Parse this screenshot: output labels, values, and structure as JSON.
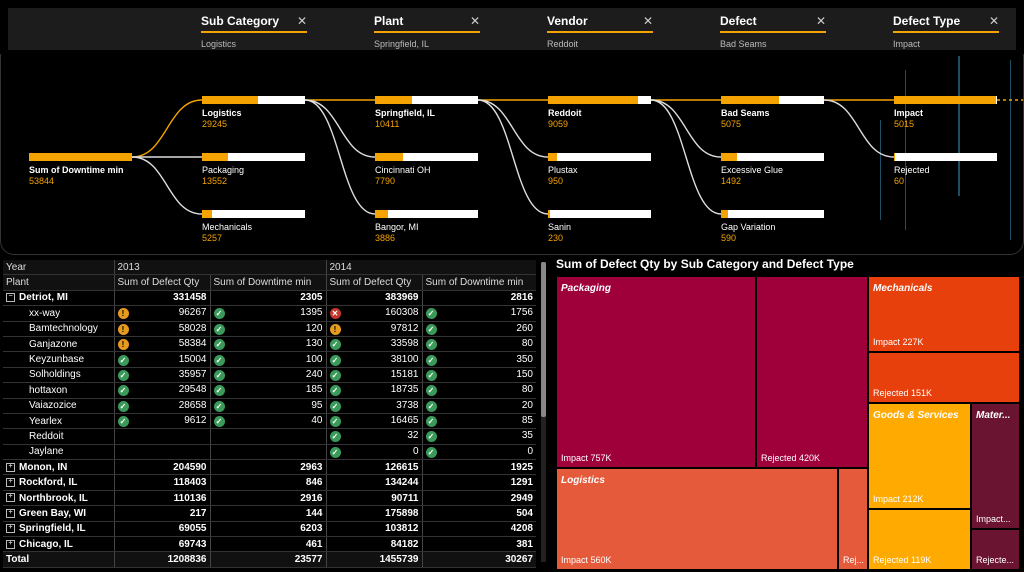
{
  "filters": [
    {
      "name": "Sub Category",
      "value": "Logistics"
    },
    {
      "name": "Plant",
      "value": "Springfield, IL"
    },
    {
      "name": "Vendor",
      "value": "Reddoit"
    },
    {
      "name": "Defect",
      "value": "Bad Seams"
    },
    {
      "name": "Defect Type",
      "value": "Impact"
    }
  ],
  "tree": {
    "root": {
      "label": "Sum of Downtime min",
      "value": "53844",
      "fill": 1.0
    },
    "levels": [
      [
        {
          "label": "Logistics",
          "value": "29245",
          "fill": 0.54,
          "selected": true
        },
        {
          "label": "Packaging",
          "value": "13552",
          "fill": 0.25
        },
        {
          "label": "Mechanicals",
          "value": "5257",
          "fill": 0.1
        }
      ],
      [
        {
          "label": "Springfield, IL",
          "value": "10411",
          "fill": 0.36,
          "selected": true
        },
        {
          "label": "Cincinnati OH",
          "value": "7790",
          "fill": 0.27
        },
        {
          "label": "Bangor, MI",
          "value": "3886",
          "fill": 0.13
        }
      ],
      [
        {
          "label": "Reddoit",
          "value": "9059",
          "fill": 0.87,
          "selected": true
        },
        {
          "label": "Plustax",
          "value": "950",
          "fill": 0.09
        },
        {
          "label": "Sanin",
          "value": "230",
          "fill": 0.02
        }
      ],
      [
        {
          "label": "Bad Seams",
          "value": "5075",
          "fill": 0.56,
          "selected": true
        },
        {
          "label": "Excessive Glue",
          "value": "1492",
          "fill": 0.16
        },
        {
          "label": "Gap Variation",
          "value": "590",
          "fill": 0.07
        }
      ],
      [
        {
          "label": "Impact",
          "value": "5015",
          "fill": 0.99,
          "selected": true
        },
        {
          "label": "Rejected",
          "value": "60",
          "fill": 0.01
        }
      ]
    ]
  },
  "matrix": {
    "year_label": "Year",
    "plant_label": "Plant",
    "years": [
      "2013",
      "2014"
    ],
    "measures": [
      "Sum of Defect Qty",
      "Sum of Downtime min"
    ],
    "expanded": {
      "name": "Detriot, MI",
      "v": [
        "331458",
        "2305",
        "383969",
        "2816"
      ]
    },
    "rows": [
      {
        "name": "xx-way",
        "v": [
          "96267",
          "1395",
          "160308",
          "1756"
        ],
        "i": [
          "warn",
          "ok",
          "bad",
          "ok"
        ]
      },
      {
        "name": "Bamtechnology",
        "v": [
          "58028",
          "120",
          "97812",
          "260"
        ],
        "i": [
          "warn",
          "ok",
          "warn",
          "ok"
        ]
      },
      {
        "name": "Ganjazone",
        "v": [
          "58384",
          "130",
          "33598",
          "80"
        ],
        "i": [
          "warn",
          "ok",
          "ok",
          "ok"
        ]
      },
      {
        "name": "Keyzunbase",
        "v": [
          "15004",
          "100",
          "38100",
          "350"
        ],
        "i": [
          "ok",
          "ok",
          "ok",
          "ok"
        ]
      },
      {
        "name": "Solholdings",
        "v": [
          "35957",
          "240",
          "15181",
          "150"
        ],
        "i": [
          "ok",
          "ok",
          "ok",
          "ok"
        ]
      },
      {
        "name": "hottaxon",
        "v": [
          "29548",
          "185",
          "18735",
          "80"
        ],
        "i": [
          "ok",
          "ok",
          "ok",
          "ok"
        ]
      },
      {
        "name": "Vaiazozice",
        "v": [
          "28658",
          "95",
          "3738",
          "20"
        ],
        "i": [
          "ok",
          "ok",
          "ok",
          "ok"
        ]
      },
      {
        "name": "Yearlex",
        "v": [
          "9612",
          "40",
          "16465",
          "85"
        ],
        "i": [
          "ok",
          "ok",
          "ok",
          "ok"
        ]
      },
      {
        "name": "Reddoit",
        "v": [
          "",
          "",
          "32",
          "35"
        ],
        "i": [
          "",
          "",
          "ok",
          "ok"
        ]
      },
      {
        "name": "Jaylane",
        "v": [
          "",
          "",
          "0",
          "0"
        ],
        "i": [
          "",
          "",
          "ok",
          "ok"
        ]
      }
    ],
    "groups": [
      {
        "name": "Monon, IN",
        "v": [
          "204590",
          "2963",
          "126615",
          "1925"
        ]
      },
      {
        "name": "Rockford, IL",
        "v": [
          "118403",
          "846",
          "134244",
          "1291"
        ]
      },
      {
        "name": "Northbrook, IL",
        "v": [
          "110136",
          "2916",
          "90711",
          "2949"
        ]
      },
      {
        "name": "Green Bay, WI",
        "v": [
          "217",
          "144",
          "175898",
          "504"
        ]
      },
      {
        "name": "Springfield, IL",
        "v": [
          "69055",
          "6203",
          "103812",
          "4208"
        ]
      },
      {
        "name": "Chicago, IL",
        "v": [
          "69743",
          "461",
          "84182",
          "381"
        ]
      }
    ],
    "total": {
      "name": "Total",
      "v": [
        "1208836",
        "23577",
        "1455739",
        "30267"
      ]
    }
  },
  "treemap": {
    "title": "Sum of Defect Qty by Sub Category and Defect Type",
    "cells": [
      {
        "id": "pk-impact",
        "title": "Packaging",
        "label": "Impact 757K",
        "color": "#a0003a"
      },
      {
        "id": "pk-rej",
        "title": "",
        "label": "Rejected 420K",
        "color": "#a0003a"
      },
      {
        "id": "lg-impact",
        "title": "Logistics",
        "label": "Impact 560K",
        "color": "#e55a3a"
      },
      {
        "id": "lg-rej",
        "title": "",
        "label": "Rej...",
        "color": "#e55a3a"
      },
      {
        "id": "mc-impact",
        "title": "Mechanicals",
        "label": "Impact 227K",
        "color": "#e8400c"
      },
      {
        "id": "mc-rej",
        "title": "",
        "label": "Rejected 151K",
        "color": "#e8400c"
      },
      {
        "id": "gs-impact",
        "title": "Goods & Services",
        "label": "Impact 212K",
        "color": "#ffaa00"
      },
      {
        "id": "gs-rej",
        "title": "",
        "label": "Rejected 119K",
        "color": "#ffaa00"
      },
      {
        "id": "mt-impact",
        "title": "Mater...",
        "label": "Impact...",
        "color": "#6b1432"
      },
      {
        "id": "mt-rej",
        "title": "",
        "label": "Rejecte...",
        "color": "#6b1432"
      }
    ]
  }
}
